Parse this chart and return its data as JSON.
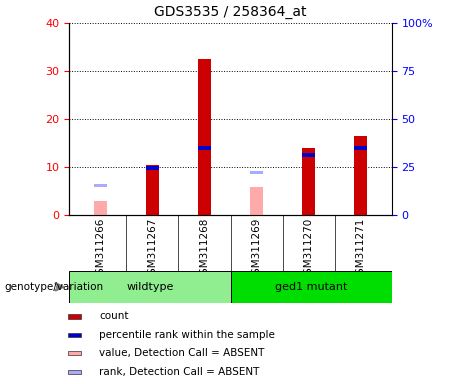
{
  "title": "GDS3535 / 258364_at",
  "samples": [
    "GSM311266",
    "GSM311267",
    "GSM311268",
    "GSM311269",
    "GSM311270",
    "GSM311271"
  ],
  "groups": [
    {
      "name": "wildtype",
      "color": "#90ee90",
      "start": 0,
      "end": 3
    },
    {
      "name": "ged1 mutant",
      "color": "#00dd00",
      "start": 3,
      "end": 6
    }
  ],
  "count_values": [
    null,
    10.5,
    32.5,
    null,
    14.0,
    16.5
  ],
  "rank_values": [
    null,
    9.8,
    14.0,
    null,
    12.5,
    14.0
  ],
  "absent_value": [
    3.0,
    null,
    null,
    5.8,
    null,
    null
  ],
  "absent_rank": [
    6.2,
    null,
    null,
    8.8,
    null,
    null
  ],
  "ylim_left": [
    0,
    40
  ],
  "ylim_right": [
    0,
    100
  ],
  "yticks_left": [
    0,
    10,
    20,
    30,
    40
  ],
  "yticks_right": [
    0,
    25,
    50,
    75,
    100
  ],
  "left_tick_labels": [
    "0",
    "10",
    "20",
    "30",
    "40"
  ],
  "right_tick_labels": [
    "0",
    "25",
    "50",
    "75",
    "100%"
  ],
  "bar_width": 0.25,
  "count_color": "#cc0000",
  "rank_color": "#0000cc",
  "absent_value_color": "#ffaaaa",
  "absent_rank_color": "#aaaaff",
  "legend_items": [
    {
      "label": "count",
      "color": "#cc0000"
    },
    {
      "label": "percentile rank within the sample",
      "color": "#0000cc"
    },
    {
      "label": "value, Detection Call = ABSENT",
      "color": "#ffaaaa"
    },
    {
      "label": "rank, Detection Call = ABSENT",
      "color": "#aaaaff"
    }
  ],
  "genotype_label": "genotype/variation",
  "sample_bg_color": "#d3d3d3"
}
